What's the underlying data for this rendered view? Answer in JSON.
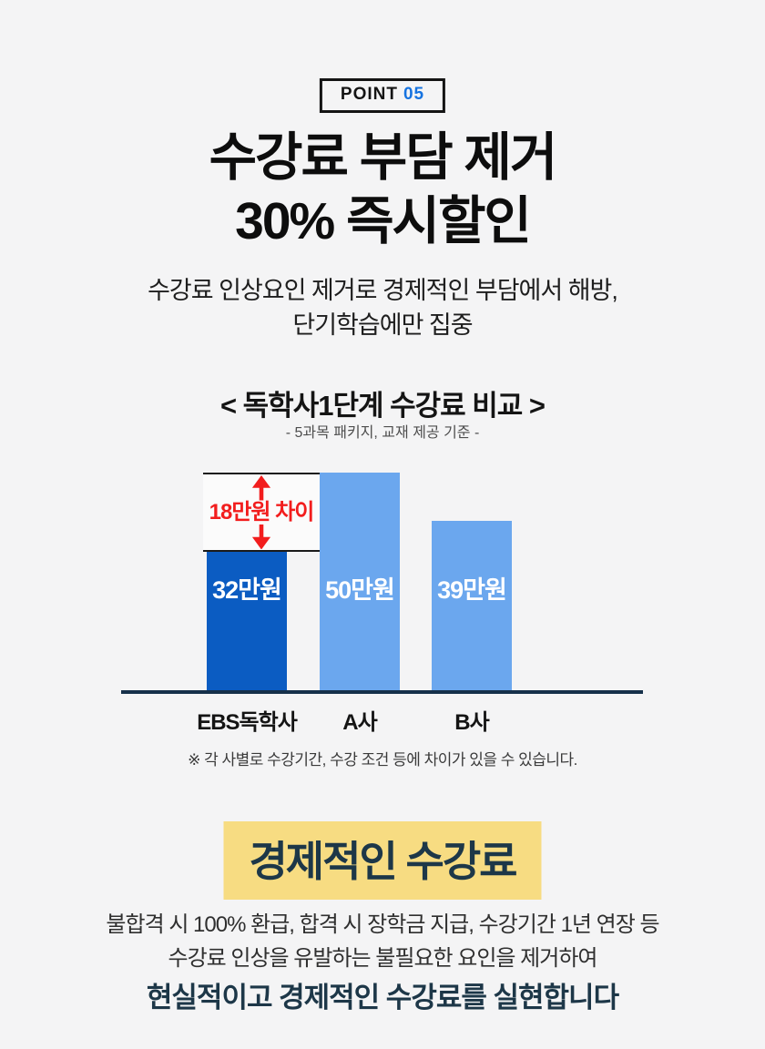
{
  "page": {
    "background": "#f4f4f5"
  },
  "badge": {
    "point": "POINT",
    "number": "05",
    "number_color": "#1673e0"
  },
  "heading": {
    "line1": "수강료 부담 제거",
    "line2": "30% 즉시할인"
  },
  "subheading": {
    "line1": "수강료 인상요인 제거로 경제적인 부담에서 해방,",
    "line2": "단기학습에만 집중"
  },
  "chart_data": {
    "type": "bar",
    "title": "< 독학사1단계 수강료 비교 >",
    "subtitle": "- 5과목 패키지, 교재 제공 기준 -",
    "categories": [
      "EBS독학사",
      "A사",
      "B사"
    ],
    "values": [
      32,
      50,
      39
    ],
    "value_labels": [
      "32만원",
      "50만원",
      "39만원"
    ],
    "unit": "만원",
    "ylim": [
      0,
      50
    ],
    "bar_colors": [
      "#0b5cc2",
      "#6ba7ee",
      "#6ba7ee"
    ],
    "baseline_color": "#16304a",
    "grid": false,
    "annotation": {
      "text": "18만원 차이",
      "difference": 18,
      "between": [
        "EBS독학사",
        "A사"
      ],
      "color": "#f21d1d"
    },
    "footnote": "※ 각 사별로 수강기간, 수강 조건 등에 차이가 있을 수 있습니다."
  },
  "highlight": {
    "text": "경제적인 수강료",
    "background": "#f7dc82",
    "text_color": "#1d3748"
  },
  "closing": {
    "line1": "불합격 시 100% 환급, 합격 시 장학금 지급, 수강기간 1년 연장 등",
    "line2": "수강료 인상을 유발하는 불필요한 요인을 제거하여",
    "line3": "현실적이고 경제적인 수강료를 실현합니다"
  }
}
